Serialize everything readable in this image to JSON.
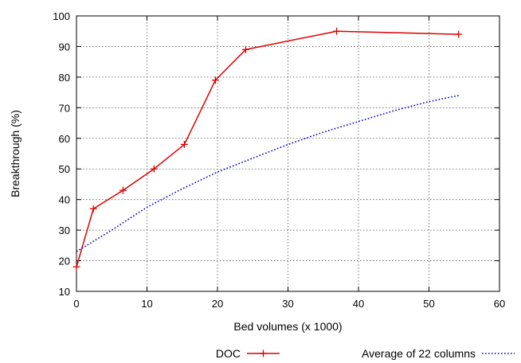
{
  "chart_data": {
    "type": "line",
    "title": "",
    "xlabel": "Bed volumes (x 1000)",
    "ylabel": "Breakthrough (%)",
    "xlim": [
      0,
      60
    ],
    "ylim": [
      10,
      100
    ],
    "x_ticks": [
      0,
      10,
      20,
      30,
      40,
      50,
      60
    ],
    "y_ticks": [
      10,
      20,
      30,
      40,
      50,
      60,
      70,
      80,
      90,
      100
    ],
    "x_tick_labels": [
      "0",
      "10",
      "20",
      "30",
      "40",
      "50",
      "60"
    ],
    "y_tick_labels": [
      "10",
      "20",
      "30",
      "40",
      "50",
      "60",
      "70",
      "80",
      "90",
      "100"
    ],
    "grid": true,
    "legend_position": "bottom",
    "series": [
      {
        "name": "DOC",
        "color": "#dd0000",
        "style": "solid",
        "marker": "plus",
        "x": [
          0,
          2.4,
          6.6,
          11.0,
          15.3,
          19.7,
          24.0,
          36.9,
          54.2
        ],
        "y": [
          18,
          37,
          43,
          50,
          58,
          79,
          89,
          95,
          94
        ]
      },
      {
        "name": "Average of 22 columns",
        "color": "#0000cc",
        "style": "dotted",
        "marker": "none",
        "x": [
          0,
          5,
          10,
          15,
          20,
          25,
          30,
          35,
          40,
          45,
          50,
          54.2
        ],
        "y": [
          23,
          30,
          37.5,
          43.5,
          49,
          53.5,
          58,
          62,
          65.5,
          69,
          72,
          74
        ]
      }
    ]
  }
}
